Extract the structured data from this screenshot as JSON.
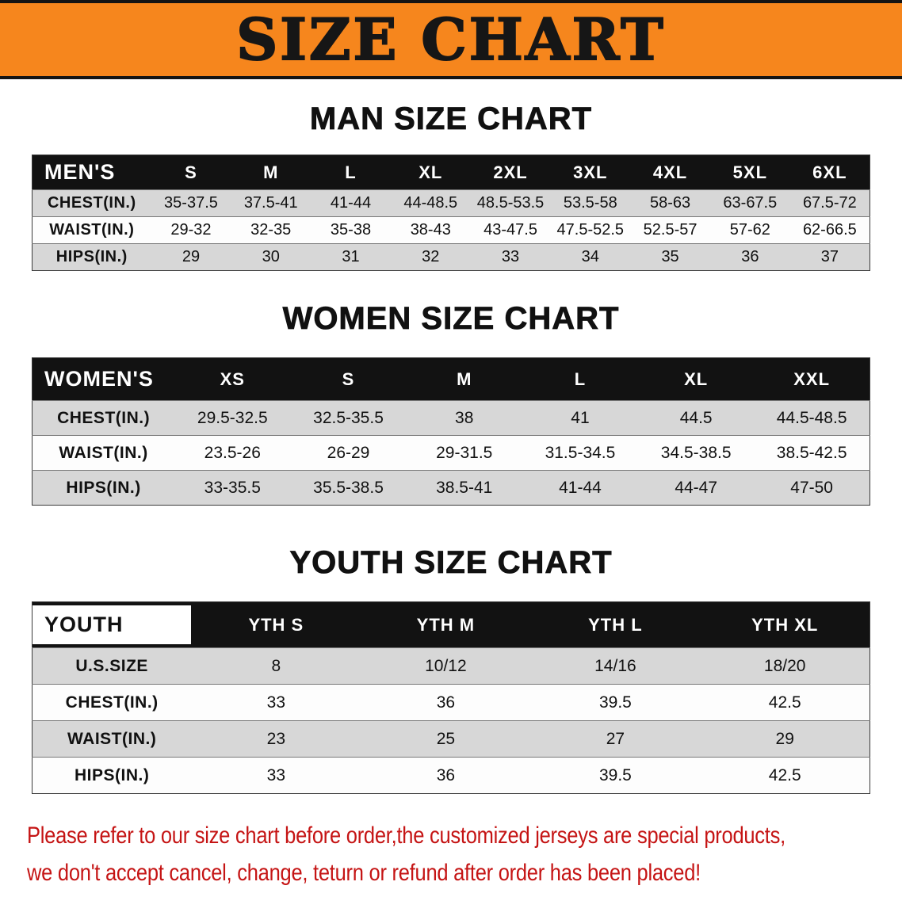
{
  "banner": {
    "title": "SIZE CHART"
  },
  "colors": {
    "banner-bg": "#f6861d",
    "banner-text": "#161616",
    "header-bg": "#121212",
    "header-text": "#ffffff",
    "row-gray": "#d7d7d7",
    "row-white": "#fdfdfd",
    "label-text": "#111111",
    "disclaimer-red": "#c51414"
  },
  "sections": [
    {
      "id": "men",
      "heading": "MAN SIZE CHART",
      "table": {
        "header": [
          "MEN'S",
          "S",
          "M",
          "L",
          "XL",
          "2XL",
          "3XL",
          "4XL",
          "5XL",
          "6XL"
        ],
        "rows": [
          {
            "label": "CHEST(IN.)",
            "values": [
              "35-37.5",
              "37.5-41",
              "41-44",
              "44-48.5",
              "48.5-53.5",
              "53.5-58",
              "58-63",
              "63-67.5",
              "67.5-72"
            ]
          },
          {
            "label": "WAIST(IN.)",
            "values": [
              "29-32",
              "32-35",
              "35-38",
              "38-43",
              "43-47.5",
              "47.5-52.5",
              "52.5-57",
              "57-62",
              "62-66.5"
            ]
          },
          {
            "label": "HIPS(IN.)",
            "values": [
              "29",
              "30",
              "31",
              "32",
              "33",
              "34",
              "35",
              "36",
              "37"
            ]
          }
        ]
      }
    },
    {
      "id": "women",
      "heading": "WOMEN SIZE CHART",
      "table": {
        "header": [
          "WOMEN'S",
          "XS",
          "S",
          "M",
          "L",
          "XL",
          "XXL"
        ],
        "rows": [
          {
            "label": "CHEST(IN.)",
            "values": [
              "29.5-32.5",
              "32.5-35.5",
              "38",
              "41",
              "44.5",
              "44.5-48.5"
            ]
          },
          {
            "label": "WAIST(IN.)",
            "values": [
              "23.5-26",
              "26-29",
              "29-31.5",
              "31.5-34.5",
              "34.5-38.5",
              "38.5-42.5"
            ]
          },
          {
            "label": "HIPS(IN.)",
            "values": [
              "33-35.5",
              "35.5-38.5",
              "38.5-41",
              "41-44",
              "44-47",
              "47-50"
            ]
          }
        ]
      }
    },
    {
      "id": "youth",
      "heading": "YOUTH SIZE CHART",
      "table": {
        "header": [
          "YOUTH",
          "YTH S",
          "YTH M",
          "YTH L",
          "YTH XL"
        ],
        "rows": [
          {
            "label": "U.S.SIZE",
            "values": [
              "8",
              "10/12",
              "14/16",
              "18/20"
            ]
          },
          {
            "label": "CHEST(IN.)",
            "values": [
              "33",
              "36",
              "39.5",
              "42.5"
            ]
          },
          {
            "label": "WAIST(IN.)",
            "values": [
              "23",
              "25",
              "27",
              "29"
            ]
          },
          {
            "label": "HIPS(IN.)",
            "values": [
              "33",
              "36",
              "39.5",
              "42.5"
            ]
          }
        ]
      }
    }
  ],
  "footer": {
    "lines": [
      "Please refer to our size chart before order,the customized jerseys are special products,",
      "we don't accept cancel, change, teturn or refund after order has been placed!"
    ]
  }
}
